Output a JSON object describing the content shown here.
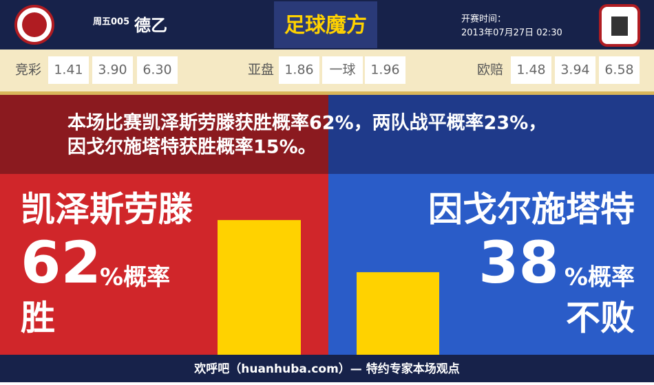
{
  "header": {
    "match_code": "周五005",
    "league": "德乙",
    "brand": "足球魔方",
    "kickoff_label": "开赛时间：",
    "kickoff_time": "2013年07月27日 02:30"
  },
  "odds": [
    {
      "label": "竞彩",
      "values": [
        "1.41",
        "3.90",
        "6.30"
      ]
    },
    {
      "label": "亚盘",
      "values": [
        "1.86",
        "一球",
        "1.96"
      ]
    },
    {
      "label": "欧赔",
      "values": [
        "1.48",
        "3.94",
        "6.58"
      ]
    }
  ],
  "summary": [
    "本场比赛凯泽斯劳滕获胜概率62%，两队战平概率23%，",
    "因戈尔施塔特获胜概率15%。"
  ],
  "home": {
    "team": "凯泽斯劳滕",
    "percent": 62,
    "percent_suffix": "%概率",
    "outcome": "胜"
  },
  "away": {
    "team": "因戈尔施塔特",
    "percent": 38,
    "percent_suffix": "%概率",
    "outcome": "不败"
  },
  "footer": "欢呼吧（huanhuba.com）— 特约专家本场观点"
}
